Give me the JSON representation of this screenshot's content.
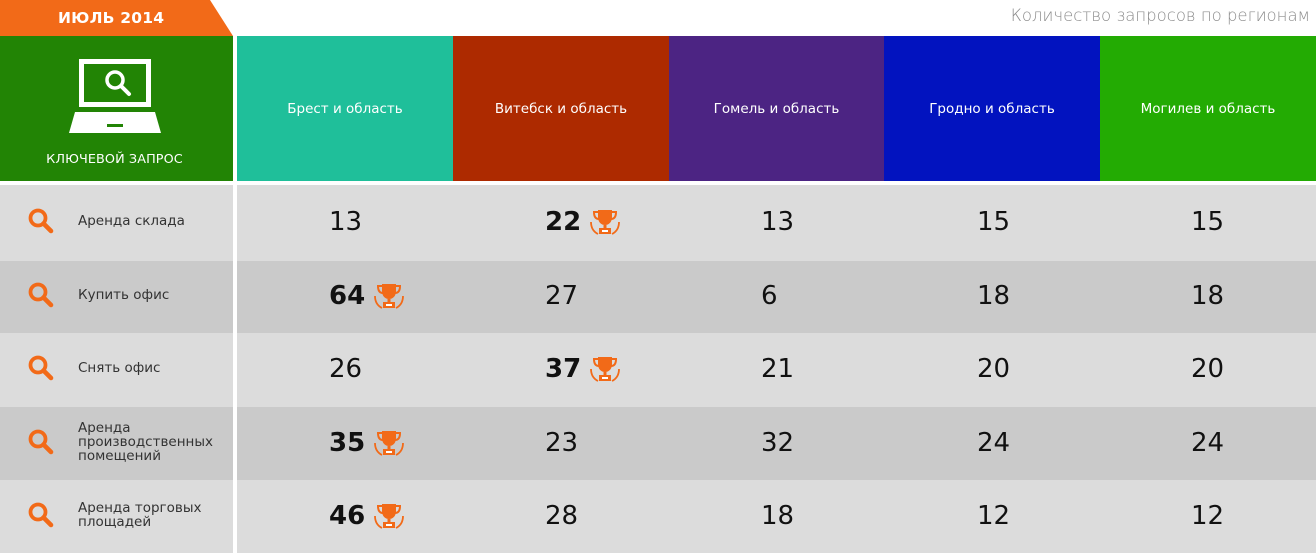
{
  "header": {
    "date_tag": "ИЮЛЬ 2014",
    "subtitle": "Количество запросов по регионам",
    "keyword_column_label": "КЛЮЧЕВОЙ ЗАПРОС"
  },
  "colors": {
    "accent": "#f26a18",
    "keyword_header": "#228405",
    "row_light": "#dcdcdc",
    "row_dark": "#cacaca"
  },
  "regions": [
    {
      "name": "Брест и область",
      "color": "#1fbf9a"
    },
    {
      "name": "Витебск и область",
      "color": "#ad2a00"
    },
    {
      "name": "Гомель и область",
      "color": "#4c2483"
    },
    {
      "name": "Гродно и область",
      "color": "#0213bf"
    },
    {
      "name": "Могилев и область",
      "color": "#23ab03"
    }
  ],
  "rows": [
    {
      "keyword": [
        "Аренда склада"
      ],
      "values": [
        "13",
        "22",
        "13",
        "15",
        "15"
      ],
      "winner": 1
    },
    {
      "keyword": [
        "Купить офис"
      ],
      "values": [
        "64",
        "27",
        "6",
        "18",
        "18"
      ],
      "winner": 0
    },
    {
      "keyword": [
        "Снять офис"
      ],
      "values": [
        "26",
        "37",
        "21",
        "20",
        "20"
      ],
      "winner": 1
    },
    {
      "keyword": [
        "Аренда",
        "производственных",
        "помещений"
      ],
      "values": [
        "35",
        "23",
        "32",
        "24",
        "24"
      ],
      "winner": 0
    },
    {
      "keyword": [
        "Аренда торговых",
        "площадей"
      ],
      "values": [
        "46",
        "28",
        "18",
        "12",
        "12"
      ],
      "winner": 0
    }
  ],
  "icons": {
    "keyword_header": "laptop-search-icon",
    "row": "search-icon",
    "winner": "trophy-icon"
  }
}
